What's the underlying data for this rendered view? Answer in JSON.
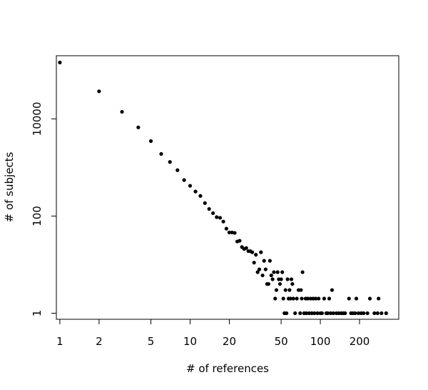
{
  "chart_data": {
    "type": "scatter",
    "title": "",
    "xlabel": "# of references",
    "ylabel": "# of subjects",
    "x_scale": "log",
    "y_scale": "log",
    "xlim": [
      0.94,
      400
    ],
    "ylim": [
      0.75,
      200000
    ],
    "x_ticks": [
      1,
      2,
      5,
      10,
      20,
      50,
      100,
      200
    ],
    "x_tick_labels": [
      "1",
      "2",
      "5",
      "10",
      "20",
      "50",
      "100",
      "200"
    ],
    "y_ticks": [
      1,
      100,
      10000
    ],
    "y_tick_labels": [
      "1",
      "100",
      "10000"
    ],
    "grid": false,
    "legend": "none",
    "marker_color": "#000000",
    "points": [
      [
        1,
        145000
      ],
      [
        2,
        37000
      ],
      [
        3,
        14000
      ],
      [
        4,
        6700
      ],
      [
        5,
        3500
      ],
      [
        6,
        1900
      ],
      [
        7,
        1300
      ],
      [
        8,
        880
      ],
      [
        9,
        550
      ],
      [
        10,
        420
      ],
      [
        11,
        320
      ],
      [
        12,
        260
      ],
      [
        13,
        185
      ],
      [
        14,
        140
      ],
      [
        15,
        115
      ],
      [
        16,
        95
      ],
      [
        17,
        92
      ],
      [
        18,
        77
      ],
      [
        19,
        55
      ],
      [
        20,
        46
      ],
      [
        21,
        46
      ],
      [
        22,
        45
      ],
      [
        23,
        30
      ],
      [
        24,
        31
      ],
      [
        25,
        23
      ],
      [
        26,
        21
      ],
      [
        27,
        22
      ],
      [
        28,
        19
      ],
      [
        29,
        19
      ],
      [
        30,
        18
      ],
      [
        31,
        11
      ],
      [
        32,
        16
      ],
      [
        33,
        7
      ],
      [
        34,
        8
      ],
      [
        35,
        18
      ],
      [
        36,
        6
      ],
      [
        37,
        12
      ],
      [
        38,
        8
      ],
      [
        39,
        4
      ],
      [
        40,
        4
      ],
      [
        41,
        12
      ],
      [
        42,
        6
      ],
      [
        43,
        5
      ],
      [
        44,
        7
      ],
      [
        45,
        2
      ],
      [
        46,
        3
      ],
      [
        47,
        7
      ],
      [
        48,
        5
      ],
      [
        49,
        4
      ],
      [
        50,
        5
      ],
      [
        51,
        7
      ],
      [
        52,
        2
      ],
      [
        53,
        1
      ],
      [
        54,
        3
      ],
      [
        55,
        1
      ],
      [
        56,
        5
      ],
      [
        57,
        2
      ],
      [
        58,
        3
      ],
      [
        59,
        2
      ],
      [
        60,
        5
      ],
      [
        61,
        4
      ],
      [
        62,
        2
      ],
      [
        64,
        1
      ],
      [
        66,
        2
      ],
      [
        68,
        3
      ],
      [
        70,
        1
      ],
      [
        71,
        3
      ],
      [
        72,
        2
      ],
      [
        73,
        7
      ],
      [
        75,
        1
      ],
      [
        77,
        2
      ],
      [
        78,
        1
      ],
      [
        80,
        2
      ],
      [
        82,
        1
      ],
      [
        84,
        2
      ],
      [
        86,
        1
      ],
      [
        88,
        2
      ],
      [
        90,
        1
      ],
      [
        92,
        2
      ],
      [
        95,
        1
      ],
      [
        97,
        2
      ],
      [
        100,
        1
      ],
      [
        103,
        1
      ],
      [
        107,
        2
      ],
      [
        111,
        1
      ],
      [
        114,
        1
      ],
      [
        117,
        2
      ],
      [
        120,
        1
      ],
      [
        123,
        3
      ],
      [
        126,
        1
      ],
      [
        133,
        1
      ],
      [
        139,
        1
      ],
      [
        145,
        1
      ],
      [
        150,
        1
      ],
      [
        155,
        1
      ],
      [
        166,
        2
      ],
      [
        172,
        1
      ],
      [
        178,
        1
      ],
      [
        185,
        1
      ],
      [
        189,
        2
      ],
      [
        196,
        1
      ],
      [
        206,
        1
      ],
      [
        215,
        1
      ],
      [
        230,
        1
      ],
      [
        240,
        2
      ],
      [
        260,
        1
      ],
      [
        275,
        1
      ],
      [
        280,
        2
      ],
      [
        295,
        1
      ],
      [
        320,
        1
      ]
    ]
  }
}
